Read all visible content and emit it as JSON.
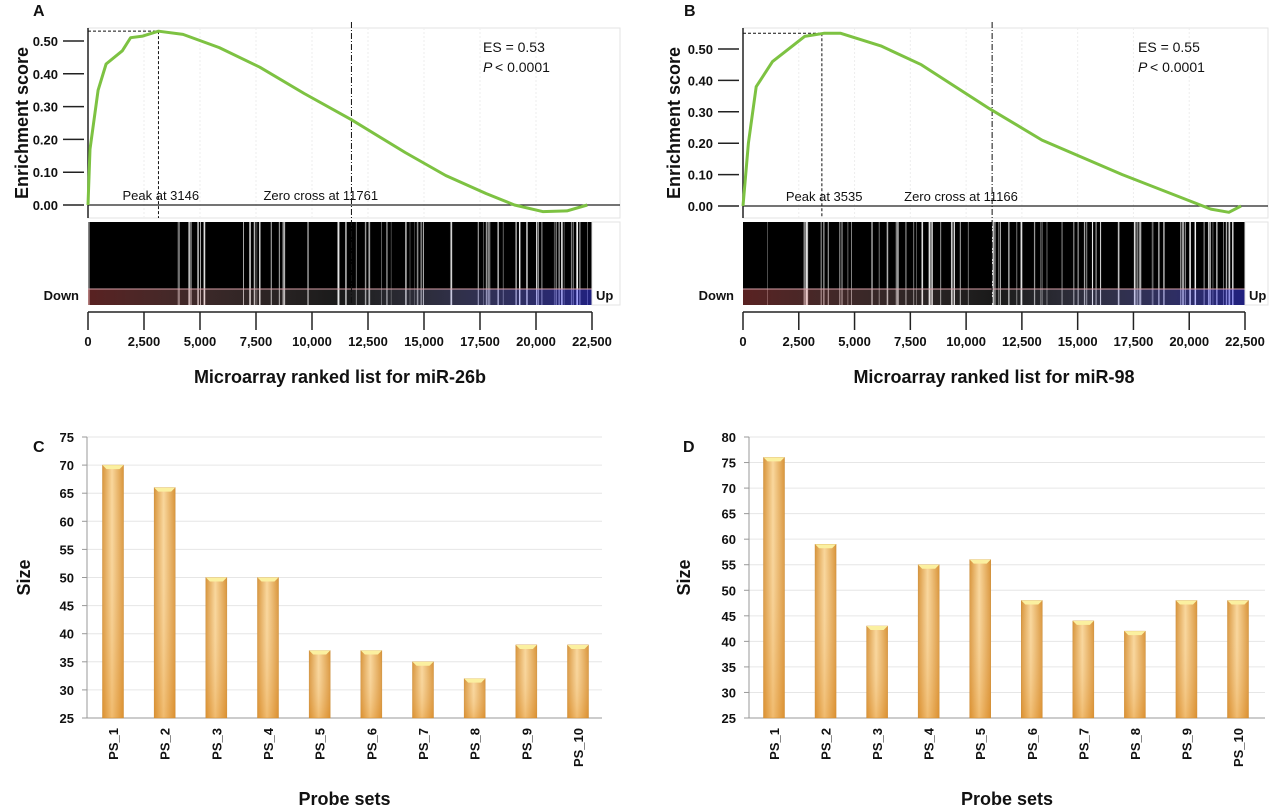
{
  "chart_data": [
    {
      "panel": "A",
      "type": "line",
      "xlabel": "Microarray ranked list for miR-26b",
      "ylabel": "Enrichment score",
      "xlim": [
        0,
        22500
      ],
      "ylim": [
        -0.03,
        0.55
      ],
      "xticks": [
        "0",
        "2,500",
        "5,000",
        "7,500",
        "10,000",
        "12,500",
        "15,000",
        "17,500",
        "20,000",
        "22,500"
      ],
      "yticks": [
        "0.00",
        "0.10",
        "0.20",
        "0.30",
        "0.40",
        "0.50"
      ],
      "es_text": "ES = 0.53",
      "p_label": "P",
      "p_text": "< 0.0001",
      "peak_label": "Peak at 3146",
      "zero_label": "Zero cross at 11761",
      "peak_x": 3146,
      "peak_y": 0.53,
      "zero_x": 11761,
      "down_label": "Down",
      "up_label": "Up",
      "line_color": "#7dc242",
      "points": [
        [
          0,
          0
        ],
        [
          90,
          0.17
        ],
        [
          450,
          0.35
        ],
        [
          810,
          0.43
        ],
        [
          1530,
          0.47
        ],
        [
          1900,
          0.51
        ],
        [
          2440,
          0.515
        ],
        [
          3146,
          0.53
        ],
        [
          4240,
          0.52
        ],
        [
          5860,
          0.48
        ],
        [
          7670,
          0.42
        ],
        [
          9650,
          0.34
        ],
        [
          11760,
          0.26
        ],
        [
          14160,
          0.16
        ],
        [
          15970,
          0.09
        ],
        [
          17770,
          0.035
        ],
        [
          19040,
          0.0
        ],
        [
          20300,
          -0.02
        ],
        [
          21380,
          -0.018
        ],
        [
          22290,
          0
        ]
      ]
    },
    {
      "panel": "B",
      "type": "line",
      "xlabel": "Microarray ranked list for miR-98",
      "ylabel": "Enrichment score",
      "xlim": [
        0,
        22500
      ],
      "ylim": [
        -0.03,
        0.55
      ],
      "xticks": [
        "0",
        "2,500",
        "5,000",
        "7,500",
        "10,000",
        "12,500",
        "15,000",
        "17,500",
        "20,000",
        "22,500"
      ],
      "yticks": [
        "0.00",
        "0.10",
        "0.20",
        "0.30",
        "0.40",
        "0.50"
      ],
      "es_text": "ES = 0.55",
      "p_label": "P",
      "p_text": "< 0.0001",
      "peak_label": "Peak at 3535",
      "zero_label": "Zero cross at 11166",
      "peak_x": 3535,
      "peak_y": 0.55,
      "zero_x": 11166,
      "down_label": "Down",
      "up_label": "Up",
      "line_color": "#7dc242",
      "points": [
        [
          0,
          0
        ],
        [
          240,
          0.2
        ],
        [
          590,
          0.38
        ],
        [
          1320,
          0.46
        ],
        [
          2220,
          0.51
        ],
        [
          2760,
          0.54
        ],
        [
          3620,
          0.55
        ],
        [
          4380,
          0.55
        ],
        [
          6180,
          0.51
        ],
        [
          7990,
          0.45
        ],
        [
          11050,
          0.31
        ],
        [
          13400,
          0.21
        ],
        [
          17000,
          0.1
        ],
        [
          20250,
          0.01
        ],
        [
          20970,
          -0.01
        ],
        [
          21780,
          -0.02
        ],
        [
          22320,
          0
        ]
      ]
    },
    {
      "panel": "C",
      "type": "bar",
      "xlabel": "Probe sets",
      "ylabel": "Size",
      "ylim": [
        25,
        75
      ],
      "yticks": [
        "25",
        "30",
        "35",
        "40",
        "45",
        "50",
        "55",
        "60",
        "65",
        "70",
        "75"
      ],
      "categories": [
        "PS_1",
        "PS_2",
        "PS_3",
        "PS_4",
        "PS_5",
        "PS_6",
        "PS_7",
        "PS_8",
        "PS_9",
        "PS_10"
      ],
      "values": [
        70,
        66,
        50,
        50,
        37,
        37,
        35,
        32,
        38,
        38
      ],
      "grid": true,
      "bar_color": "#f0b55a"
    },
    {
      "panel": "D",
      "type": "bar",
      "xlabel": "Probe sets",
      "ylabel": "Size",
      "ylim": [
        25,
        80
      ],
      "yticks": [
        "25",
        "30",
        "35",
        "40",
        "45",
        "50",
        "55",
        "60",
        "65",
        "70",
        "75",
        "80"
      ],
      "categories": [
        "PS_1",
        "PS_2",
        "PS_3",
        "PS_4",
        "PS_5",
        "PS_6",
        "PS_7",
        "PS_8",
        "PS_9",
        "PS_10"
      ],
      "values": [
        76,
        59,
        43,
        55,
        56,
        48,
        44,
        42,
        48,
        48
      ],
      "grid": true,
      "bar_color": "#f0b55a"
    }
  ]
}
